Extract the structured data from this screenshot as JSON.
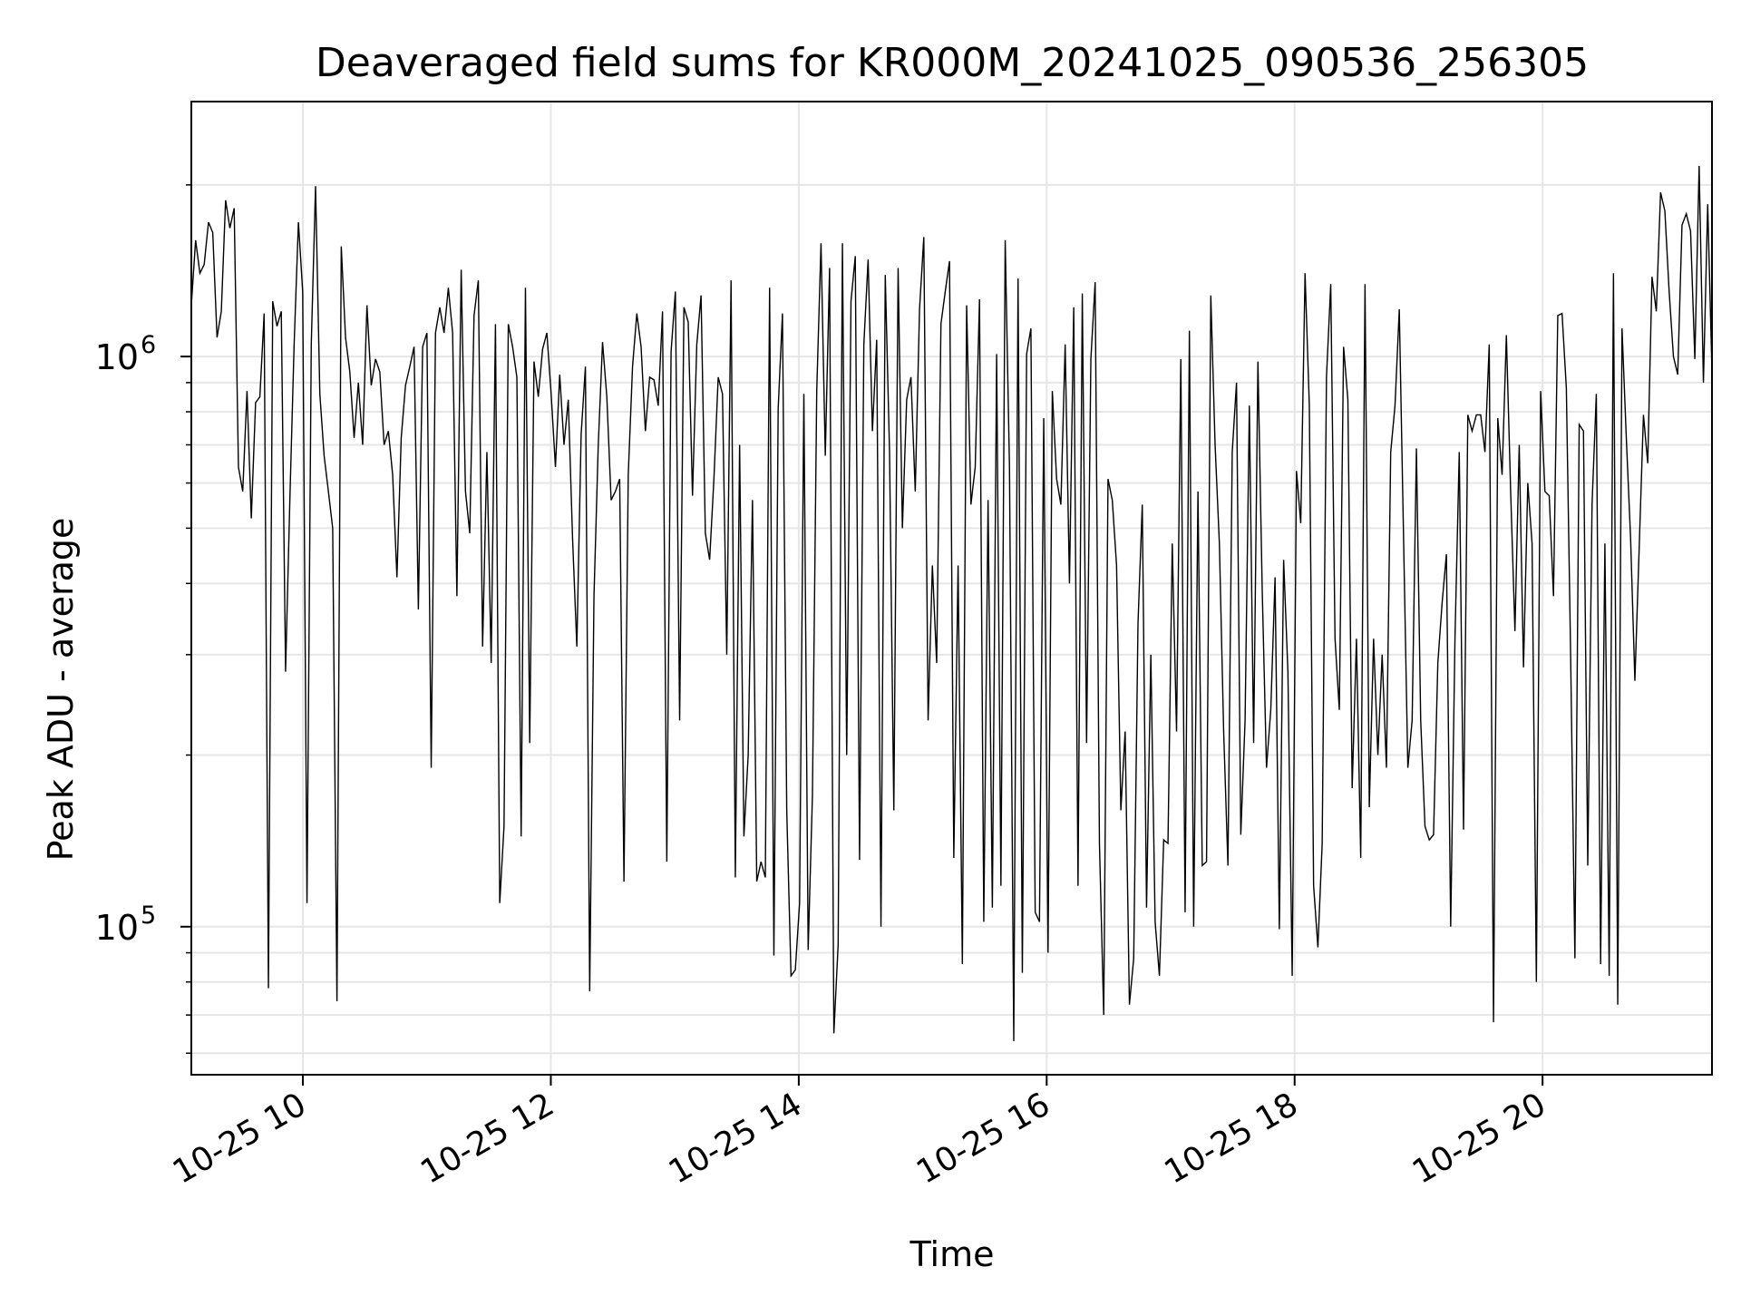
{
  "chart_data": {
    "type": "line",
    "title": "Deaveraged field sums for KR000M_20241025_090536_256305",
    "xlabel": "Time",
    "ylabel": "Peak ADU - average",
    "y_scale": "log",
    "ylim": [
      55000,
      2800000
    ],
    "xlim": [
      "2024-10-25 09:06",
      "2024-10-25 21:22"
    ],
    "grid": true,
    "line_color": "#000000",
    "x_ticks": [
      {
        "value": "2024-10-25 10:00",
        "label": "10-25 10"
      },
      {
        "value": "2024-10-25 12:00",
        "label": "10-25 12"
      },
      {
        "value": "2024-10-25 14:00",
        "label": "10-25 14"
      },
      {
        "value": "2024-10-25 16:00",
        "label": "10-25 16"
      },
      {
        "value": "2024-10-25 18:00",
        "label": "10-25 18"
      },
      {
        "value": "2024-10-25 20:00",
        "label": "10-25 20"
      }
    ],
    "y_ticks": [
      {
        "value": 100000,
        "base": "10",
        "exp": "5"
      },
      {
        "value": 1000000,
        "base": "10",
        "exp": "6"
      }
    ],
    "series": [
      {
        "x_start": "2024-10-25 09:06",
        "x_end": "2024-10-25 21:22",
        "values": [
          1230000,
          1600000,
          1400000,
          1450000,
          1720000,
          1650000,
          1080000,
          1200000,
          1880000,
          1680000,
          1820000,
          640000,
          580000,
          870000,
          520000,
          830000,
          850000,
          1190000,
          78000,
          1250000,
          1130000,
          1200000,
          280000,
          560000,
          1050000,
          1720000,
          1300000,
          110000,
          1050000,
          1990000,
          860000,
          670000,
          580000,
          500000,
          74000,
          1560000,
          1080000,
          940000,
          720000,
          900000,
          700000,
          1230000,
          890000,
          990000,
          940000,
          700000,
          740000,
          620000,
          410000,
          720000,
          890000,
          960000,
          1040000,
          360000,
          1040000,
          1100000,
          190000,
          1100000,
          1220000,
          1100000,
          1320000,
          1100000,
          380000,
          1420000,
          580000,
          490000,
          1180000,
          1360000,
          310000,
          680000,
          290000,
          1140000,
          110000,
          150000,
          1140000,
          1040000,
          920000,
          144000,
          1320000,
          210000,
          980000,
          850000,
          1030000,
          1100000,
          860000,
          640000,
          930000,
          700000,
          840000,
          480000,
          310000,
          730000,
          960000,
          77000,
          380000,
          700000,
          1060000,
          850000,
          560000,
          580000,
          610000,
          120000,
          620000,
          960000,
          1190000,
          1040000,
          740000,
          920000,
          910000,
          820000,
          1200000,
          130000,
          1020000,
          1300000,
          230000,
          1220000,
          1150000,
          570000,
          1050000,
          1280000,
          490000,
          440000,
          610000,
          920000,
          860000,
          300000,
          1360000,
          122000,
          700000,
          144000,
          200000,
          560000,
          120000,
          130000,
          122000,
          1320000,
          89000,
          810000,
          1190000,
          160000,
          82000,
          84000,
          110000,
          860000,
          91000,
          170000,
          870000,
          1580000,
          670000,
          1430000,
          65000,
          93000,
          1580000,
          200000,
          1250000,
          1500000,
          131000,
          1050000,
          1480000,
          740000,
          1070000,
          100000,
          1390000,
          680000,
          160000,
          1430000,
          500000,
          840000,
          920000,
          580000,
          1210000,
          1620000,
          230000,
          430000,
          290000,
          1140000,
          1300000,
          1470000,
          132000,
          430000,
          86000,
          1230000,
          550000,
          640000,
          1260000,
          102000,
          560000,
          108000,
          1010000,
          118000,
          1600000,
          640000,
          63000,
          1370000,
          83000,
          1010000,
          1120000,
          106000,
          102000,
          780000,
          90000,
          870000,
          610000,
          550000,
          1050000,
          400000,
          1220000,
          118000,
          1290000,
          210000,
          990000,
          1350000,
          140000,
          70000,
          610000,
          560000,
          430000,
          160000,
          220000,
          73000,
          88000,
          340000,
          550000,
          108000,
          300000,
          102000,
          82000,
          142000,
          140000,
          470000,
          220000,
          990000,
          106000,
          1110000,
          100000,
          580000,
          128000,
          130000,
          1280000,
          700000,
          470000,
          220000,
          128000,
          680000,
          900000,
          145000,
          230000,
          820000,
          210000,
          980000,
          390000,
          190000,
          240000,
          410000,
          99000,
          440000,
          280000,
          82000,
          630000,
          510000,
          1400000,
          820000,
          118000,
          92000,
          140000,
          920000,
          1340000,
          320000,
          240000,
          1040000,
          840000,
          175000,
          320000,
          132000,
          1340000,
          162000,
          320000,
          200000,
          300000,
          190000,
          680000,
          820000,
          1210000,
          480000,
          190000,
          230000,
          690000,
          230000,
          150000,
          142000,
          145000,
          290000,
          370000,
          450000,
          100000,
          320000,
          680000,
          148000,
          790000,
          740000,
          790000,
          790000,
          680000,
          1050000,
          68000,
          780000,
          620000,
          1090000,
          580000,
          330000,
          700000,
          285000,
          600000,
          470000,
          80000,
          870000,
          580000,
          570000,
          380000,
          1180000,
          1190000,
          880000,
          300000,
          88000,
          760000,
          740000,
          128000,
          550000,
          860000,
          86000,
          470000,
          82000,
          1400000,
          73000,
          1120000,
          720000,
          480000,
          270000,
          460000,
          790000,
          650000,
          1380000,
          1200000,
          1940000,
          1800000,
          1300000,
          1000000,
          930000,
          1700000,
          1780000,
          1660000,
          990000,
          2160000,
          900000,
          1850000,
          940000
        ]
      }
    ]
  }
}
